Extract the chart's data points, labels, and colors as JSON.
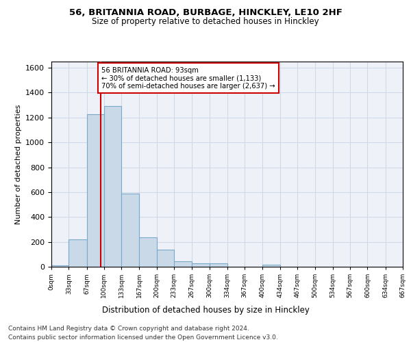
{
  "title1": "56, BRITANNIA ROAD, BURBAGE, HINCKLEY, LE10 2HF",
  "title2": "Size of property relative to detached houses in Hinckley",
  "xlabel": "Distribution of detached houses by size in Hinckley",
  "ylabel": "Number of detached properties",
  "property_size": 93,
  "annotation_line1": "56 BRITANNIA ROAD: 93sqm",
  "annotation_line2": "← 30% of detached houses are smaller (1,133)",
  "annotation_line3": "70% of semi-detached houses are larger (2,637) →",
  "footer1": "Contains HM Land Registry data © Crown copyright and database right 2024.",
  "footer2": "Contains public sector information licensed under the Open Government Licence v3.0.",
  "bin_edges": [
    0,
    33,
    67,
    100,
    133,
    167,
    200,
    233,
    267,
    300,
    334,
    367,
    400,
    434,
    467,
    500,
    534,
    567,
    600,
    634,
    667
  ],
  "bin_counts": [
    10,
    220,
    1225,
    1295,
    590,
    235,
    135,
    45,
    30,
    25,
    0,
    0,
    15,
    0,
    0,
    0,
    0,
    0,
    0,
    0
  ],
  "bar_color": "#c9d9e8",
  "bar_edge_color": "#7aa8c8",
  "red_line_x": 93,
  "annotation_box_color": "#cc0000",
  "grid_color": "#d0d8e8",
  "background_color": "#eef2f8",
  "ylim": [
    0,
    1650
  ],
  "yticks": [
    0,
    200,
    400,
    600,
    800,
    1000,
    1200,
    1400,
    1600
  ]
}
